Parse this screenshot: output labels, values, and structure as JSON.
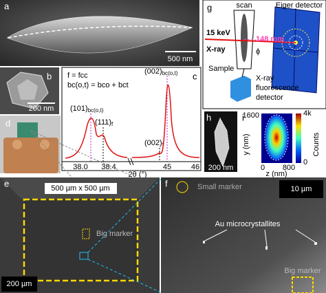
{
  "a": {
    "label": "a",
    "scale": "500 nm"
  },
  "b": {
    "label": "b",
    "scale": "200 nm"
  },
  "c": {
    "label": "c",
    "legend": [
      "f = fcc",
      "bc(o,t) = bco + bct"
    ],
    "peaks": [
      {
        "plane": "(002)",
        "phase": "bc(o,t)"
      },
      {
        "plane": "(101)",
        "phase": "bc(o,t)"
      },
      {
        "plane": "(111)",
        "phase": "f"
      },
      {
        "plane": "(002)",
        "phase": "f"
      }
    ],
    "tick_labels": [
      "38.0",
      "38.4",
      "45",
      "46"
    ],
    "x_label": "2θ (°)"
  },
  "d": {
    "label": "d"
  },
  "g": {
    "label": "g",
    "scan": "scan",
    "detector": "Eiger detector",
    "energy": "15 keV",
    "beam": "X-ray",
    "distance": "148 mm",
    "angle": "ϕ",
    "sample": "Sample",
    "fluorescence": [
      "X-ray",
      "fluorescence",
      "detector"
    ]
  },
  "h": {
    "label": "h",
    "scale": "200 nm"
  },
  "i": {
    "label": "i",
    "y_max": "1600",
    "y_label": "y (nm)",
    "x_min": "0",
    "x_max": "800",
    "x_label": "z (nm)",
    "cbar_max": "4k",
    "cbar_min": "0",
    "cbar_label": "Counts"
  },
  "e": {
    "label": "e",
    "area": "500 µm x 500 µm",
    "marker": "Big marker",
    "scale": "200 µm"
  },
  "f": {
    "label": "f",
    "small_marker": "Small marker",
    "scale": "10 µm",
    "crystals": "Au microcrystallites",
    "marker": "Big marker"
  }
}
